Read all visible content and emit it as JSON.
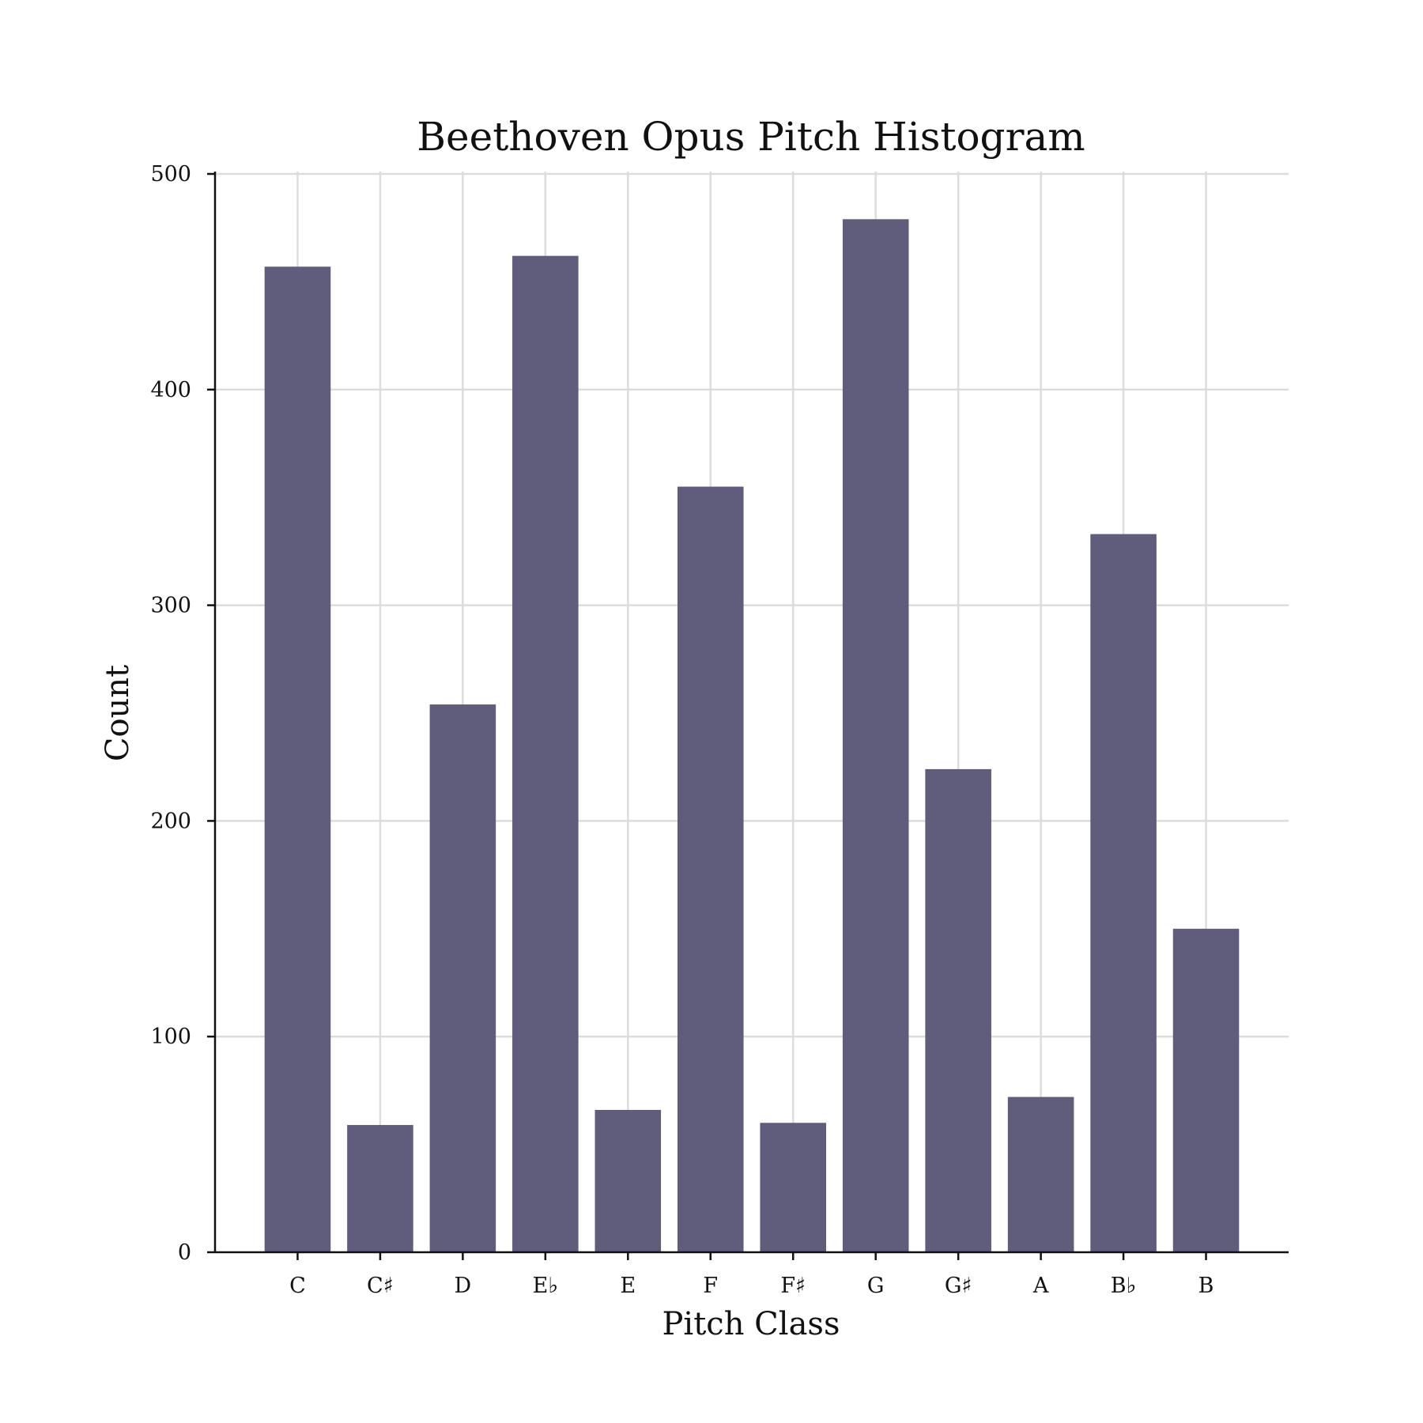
{
  "chart_data": {
    "type": "bar",
    "title": "Beethoven Opus Pitch Histogram",
    "xlabel": "Pitch Class",
    "ylabel": "Count",
    "categories": [
      "C",
      "C♯",
      "D",
      "E♭",
      "E",
      "F",
      "F♯",
      "G",
      "G♯",
      "A",
      "B♭",
      "B"
    ],
    "values": [
      457,
      59,
      254,
      462,
      66,
      355,
      60,
      479,
      224,
      72,
      333,
      150
    ],
    "ylim": [
      0,
      500
    ],
    "yticks": [
      0,
      100,
      200,
      300,
      400,
      500
    ],
    "grid": true,
    "bar_color": "#5f5c7c"
  }
}
